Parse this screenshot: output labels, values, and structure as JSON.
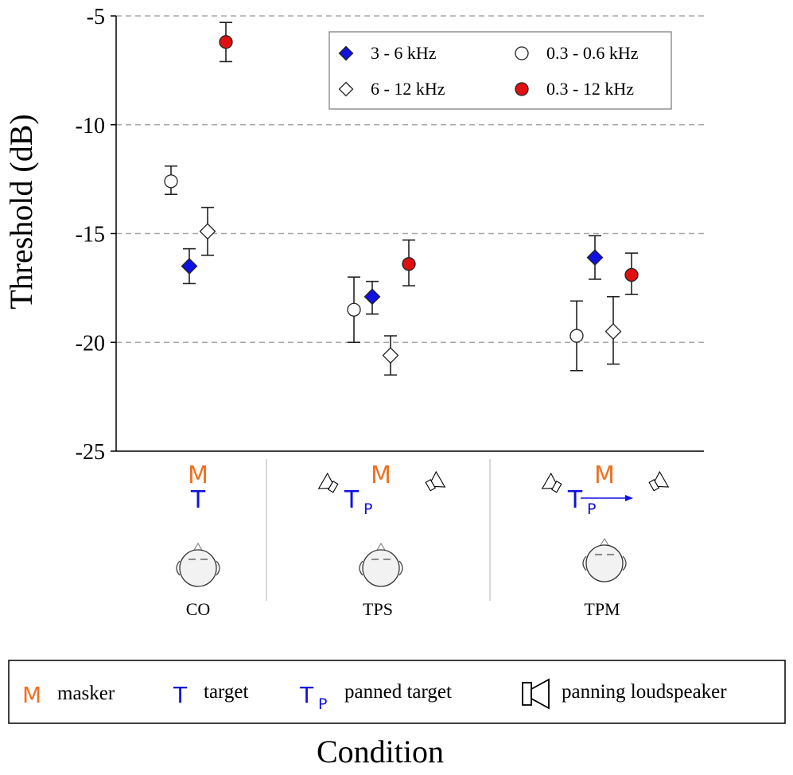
{
  "chart_data": {
    "type": "scatter",
    "ylabel": "Threshold (dB)",
    "xlabel": "Condition",
    "ylim": [
      -25,
      -5
    ],
    "yticks": [
      -5,
      -10,
      -15,
      -20,
      -25
    ],
    "grid": "horizontal dashed",
    "legend_position": "top-right",
    "categories": [
      "CO",
      "TPS",
      "TPM"
    ],
    "series": [
      {
        "name": "3 - 6 kHz",
        "marker": "diamond",
        "fill": "#1010e0",
        "values": [
          -16.5,
          -17.9,
          -16.1
        ],
        "err_lo": [
          -17.3,
          -18.7,
          -17.1
        ],
        "err_hi": [
          -15.7,
          -17.2,
          -15.1
        ]
      },
      {
        "name": "6 - 12 kHz",
        "marker": "diamond",
        "fill": "#ffffff",
        "values": [
          -14.9,
          -20.6,
          -19.5
        ],
        "err_lo": [
          -16.0,
          -21.5,
          -21.0
        ],
        "err_hi": [
          -13.8,
          -19.7,
          -17.9
        ]
      },
      {
        "name": "0.3 - 0.6 kHz",
        "marker": "circle",
        "fill": "#ffffff",
        "values": [
          -12.6,
          -18.5,
          -19.7
        ],
        "err_lo": [
          -13.2,
          -20.0,
          -21.3
        ],
        "err_hi": [
          -11.9,
          -17.0,
          -18.1
        ]
      },
      {
        "name": "0.3 - 12 kHz",
        "marker": "circle",
        "fill": "#e01010",
        "values": [
          -6.2,
          -16.4,
          -16.9
        ],
        "err_lo": [
          -7.1,
          -17.4,
          -17.8
        ],
        "err_hi": [
          -5.3,
          -15.3,
          -15.9
        ]
      }
    ]
  },
  "scenes": [
    {
      "masker_symbol": "M",
      "target_symbol": "T",
      "target_subscript": "",
      "loudspeakers": false,
      "arrow": false
    },
    {
      "masker_symbol": "M",
      "target_symbol": "T",
      "target_subscript": "P",
      "loudspeakers": true,
      "arrow": false
    },
    {
      "masker_symbol": "M",
      "target_symbol": "T",
      "target_subscript": "P",
      "loudspeakers": true,
      "arrow": true
    }
  ],
  "key": {
    "masker_symbol": "M",
    "masker_label": "masker",
    "target_symbol": "T",
    "target_label": "target",
    "panned_symbol": "T",
    "panned_subscript": "P",
    "panned_label": "panned target",
    "speaker_label": "panning loudspeaker"
  },
  "colors": {
    "masker": "#f07020",
    "target": "#1010e0",
    "axis": "#000000",
    "grid": "#a8a8a8"
  }
}
